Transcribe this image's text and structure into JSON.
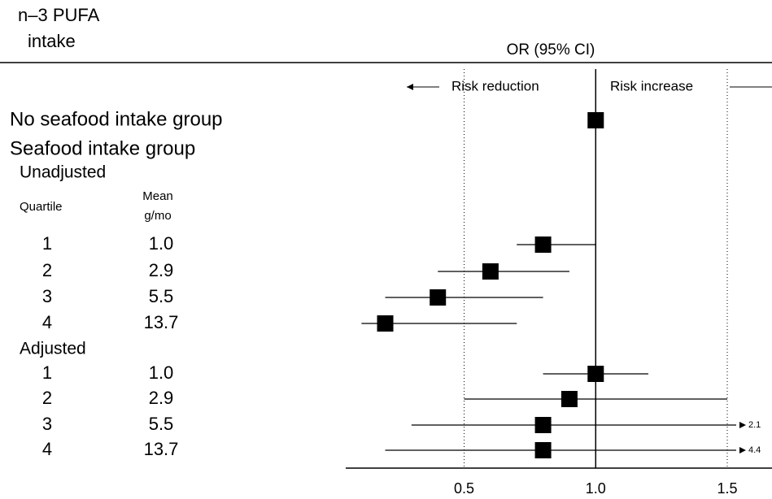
{
  "chart_data": {
    "type": "forest",
    "title_lines": [
      "n–3 PUFA",
      "intake"
    ],
    "x_label": "OR (95% CI)",
    "direction_labels": [
      "Risk reduction",
      "Risk increase"
    ],
    "column_headers": {
      "quartile": "Quartile",
      "mean": [
        "Mean",
        "g/mo"
      ]
    },
    "xlim": [
      0.05,
      1.67
    ],
    "xticks": [
      0.5,
      {
        "value": 1,
        "label": "1.0"
      },
      1.5
    ],
    "reference": 1,
    "rows": [
      {
        "label": "No seafood intake group",
        "or": 1
      },
      {
        "label": "Seafood intake group"
      },
      {
        "label": "Unadjusted"
      },
      {
        "quartile": "1",
        "mean": "1.0",
        "or": 0.8,
        "ci": [
          0.7,
          1.0
        ]
      },
      {
        "quartile": "2",
        "mean": "2.9",
        "or": 0.6,
        "ci": [
          0.4,
          0.9
        ]
      },
      {
        "quartile": "3",
        "mean": "5.5",
        "or": 0.4,
        "ci": [
          0.2,
          0.8
        ]
      },
      {
        "quartile": "4",
        "mean": "13.7",
        "or": 0.2,
        "ci": [
          0.11,
          0.7
        ]
      },
      {
        "label": "Adjusted"
      },
      {
        "quartile": "1",
        "mean": "1.0",
        "or": 1.0,
        "ci": [
          0.8,
          1.2
        ]
      },
      {
        "quartile": "2",
        "mean": "2.9",
        "or": 0.9,
        "ci": [
          0.5,
          1.5
        ]
      },
      {
        "quartile": "3",
        "mean": "5.5",
        "or": 0.8,
        "ci": [
          0.3,
          2.1
        ]
      },
      {
        "quartile": "4",
        "mean": "13.7",
        "or": 0.8,
        "ci": [
          0.2,
          4.4
        ]
      }
    ]
  }
}
